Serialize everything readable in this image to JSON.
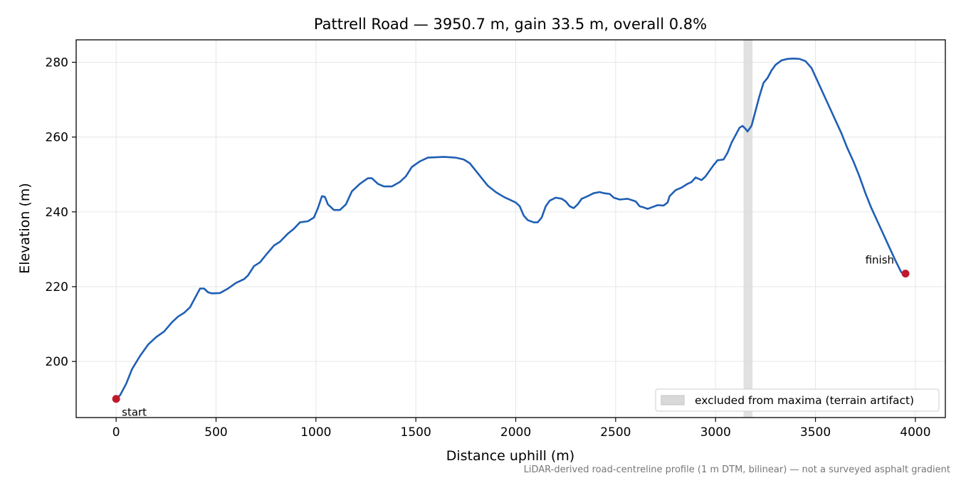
{
  "chart_data": {
    "type": "line",
    "title": "Pattrell Road — 3950.7 m, gain 33.5 m, overall 0.8%",
    "xlabel": "Distance uphill (m)",
    "ylabel": "Elevation (m)",
    "xlim": [
      -200,
      4150
    ],
    "ylim": [
      185,
      286
    ],
    "xticks": [
      0,
      500,
      1000,
      1500,
      2000,
      2500,
      3000,
      3500,
      4000
    ],
    "xtick_labels": [
      "0",
      "500",
      "1000",
      "1500",
      "2000",
      "2500",
      "3000",
      "3500",
      "4000"
    ],
    "yticks": [
      200,
      220,
      240,
      260,
      280
    ],
    "ytick_labels": [
      "200",
      "220",
      "240",
      "260",
      "280"
    ],
    "grid": true,
    "legend": {
      "placement": "lower-right",
      "entries": [
        "excluded from maxima (terrain artifact)"
      ]
    },
    "excluded_band": {
      "x_start": 3140,
      "x_end": 3185,
      "label": "excluded from maxima (terrain artifact)",
      "color": "#d9d9d9"
    },
    "series": [
      {
        "color": "#1f5fb4",
        "points": [
          [
            0,
            190
          ],
          [
            20,
            191
          ],
          [
            50,
            194
          ],
          [
            80,
            198
          ],
          [
            120,
            201.5
          ],
          [
            160,
            204.5
          ],
          [
            200,
            206.5
          ],
          [
            240,
            208
          ],
          [
            280,
            210.5
          ],
          [
            310,
            212
          ],
          [
            340,
            213
          ],
          [
            370,
            214.5
          ],
          [
            400,
            217.5
          ],
          [
            420,
            219.5
          ],
          [
            440,
            219.5
          ],
          [
            460,
            218.5
          ],
          [
            480,
            218.2
          ],
          [
            520,
            218.3
          ],
          [
            560,
            219.5
          ],
          [
            600,
            221
          ],
          [
            640,
            222
          ],
          [
            660,
            223
          ],
          [
            690,
            225.5
          ],
          [
            720,
            226.5
          ],
          [
            750,
            228.5
          ],
          [
            790,
            231
          ],
          [
            820,
            232
          ],
          [
            860,
            234.2
          ],
          [
            890,
            235.5
          ],
          [
            920,
            237.2
          ],
          [
            960,
            237.5
          ],
          [
            990,
            238.5
          ],
          [
            1010,
            241
          ],
          [
            1030,
            244.2
          ],
          [
            1045,
            244
          ],
          [
            1060,
            242
          ],
          [
            1090,
            240.5
          ],
          [
            1120,
            240.5
          ],
          [
            1150,
            242
          ],
          [
            1180,
            245.5
          ],
          [
            1220,
            247.5
          ],
          [
            1260,
            249
          ],
          [
            1280,
            249
          ],
          [
            1310,
            247.5
          ],
          [
            1340,
            246.8
          ],
          [
            1380,
            246.8
          ],
          [
            1420,
            248
          ],
          [
            1450,
            249.5
          ],
          [
            1480,
            252
          ],
          [
            1520,
            253.5
          ],
          [
            1560,
            254.5
          ],
          [
            1600,
            254.6
          ],
          [
            1640,
            254.7
          ],
          [
            1700,
            254.5
          ],
          [
            1740,
            254
          ],
          [
            1770,
            253
          ],
          [
            1800,
            251
          ],
          [
            1830,
            249
          ],
          [
            1860,
            247
          ],
          [
            1900,
            245.3
          ],
          [
            1940,
            244
          ],
          [
            1980,
            243
          ],
          [
            2000,
            242.5
          ],
          [
            2020,
            241.5
          ],
          [
            2040,
            239
          ],
          [
            2060,
            237.8
          ],
          [
            2090,
            237.2
          ],
          [
            2110,
            237.2
          ],
          [
            2130,
            238.5
          ],
          [
            2150,
            241.5
          ],
          [
            2170,
            243
          ],
          [
            2200,
            243.8
          ],
          [
            2230,
            243.5
          ],
          [
            2250,
            242.8
          ],
          [
            2270,
            241.5
          ],
          [
            2290,
            241
          ],
          [
            2310,
            242
          ],
          [
            2330,
            243.5
          ],
          [
            2360,
            244.2
          ],
          [
            2390,
            245
          ],
          [
            2420,
            245.3
          ],
          [
            2440,
            245
          ],
          [
            2470,
            244.8
          ],
          [
            2490,
            243.8
          ],
          [
            2520,
            243.3
          ],
          [
            2560,
            243.5
          ],
          [
            2600,
            242.8
          ],
          [
            2620,
            241.5
          ],
          [
            2640,
            241.2
          ],
          [
            2660,
            240.8
          ],
          [
            2680,
            241.2
          ],
          [
            2710,
            241.8
          ],
          [
            2740,
            241.7
          ],
          [
            2760,
            242.5
          ],
          [
            2770,
            244.2
          ],
          [
            2800,
            245.8
          ],
          [
            2830,
            246.5
          ],
          [
            2860,
            247.5
          ],
          [
            2880,
            248
          ],
          [
            2900,
            249.2
          ],
          [
            2930,
            248.5
          ],
          [
            2950,
            249.5
          ],
          [
            2970,
            251
          ],
          [
            2990,
            252.5
          ],
          [
            3010,
            253.8
          ],
          [
            3040,
            254
          ],
          [
            3060,
            255.8
          ],
          [
            3080,
            258.5
          ],
          [
            3100,
            260.5
          ],
          [
            3120,
            262.5
          ],
          [
            3135,
            263
          ],
          [
            3150,
            262.2
          ],
          [
            3160,
            261.5
          ],
          [
            3180,
            263
          ],
          [
            3200,
            267
          ],
          [
            3220,
            271
          ],
          [
            3240,
            274.5
          ],
          [
            3260,
            275.8
          ],
          [
            3280,
            277.8
          ],
          [
            3300,
            279.3
          ],
          [
            3330,
            280.5
          ],
          [
            3360,
            280.9
          ],
          [
            3390,
            281
          ],
          [
            3420,
            280.9
          ],
          [
            3450,
            280.3
          ],
          [
            3480,
            278.5
          ],
          [
            3510,
            275
          ],
          [
            3540,
            271.5
          ],
          [
            3570,
            268
          ],
          [
            3600,
            264.5
          ],
          [
            3630,
            261
          ],
          [
            3660,
            257
          ],
          [
            3690,
            253.5
          ],
          [
            3720,
            249.5
          ],
          [
            3750,
            245
          ],
          [
            3780,
            241
          ],
          [
            3810,
            237.5
          ],
          [
            3840,
            234
          ],
          [
            3870,
            230.5
          ],
          [
            3900,
            227
          ],
          [
            3930,
            223.8
          ],
          [
            3950.7,
            223.5
          ]
        ]
      }
    ],
    "markers": [
      {
        "x": 0,
        "y": 190,
        "label": "start",
        "color": "#c0192e"
      },
      {
        "x": 3950.7,
        "y": 223.5,
        "label": "finish",
        "color": "#c0192e"
      }
    ],
    "footnote": "LiDAR-derived road-centreline profile (1 m DTM, bilinear) — not a surveyed asphalt gradient"
  }
}
